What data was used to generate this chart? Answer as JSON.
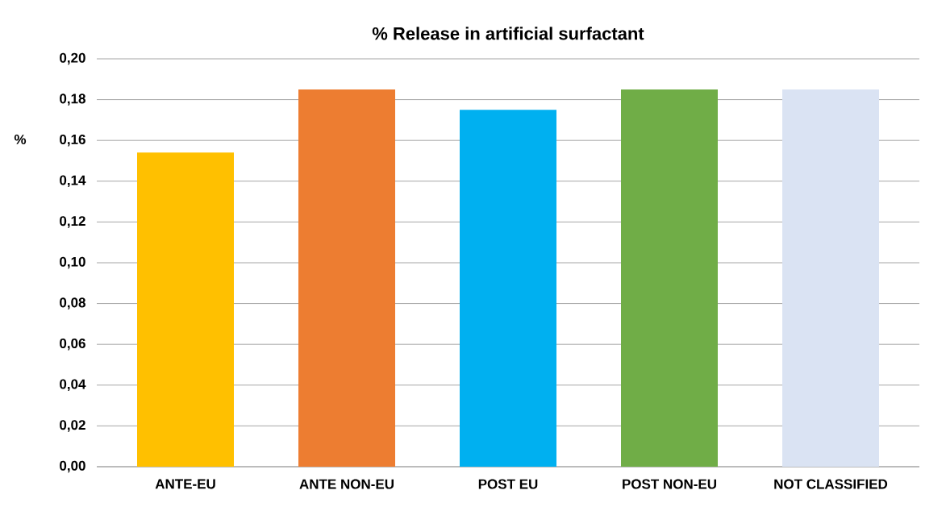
{
  "chart_data": {
    "type": "bar",
    "title": "% Release in artificial surfactant",
    "ylabel": "%",
    "categories": [
      "ANTE-EU",
      "ANTE NON-EU",
      "POST EU",
      "POST NON-EU",
      "NOT CLASSIFIED"
    ],
    "values": [
      0.154,
      0.185,
      0.175,
      0.185,
      0.185
    ],
    "colors": [
      "#ffc000",
      "#ed7d31",
      "#00b0f0",
      "#70ad47",
      "#dae3f3"
    ],
    "ylim": [
      0,
      0.2
    ],
    "yticks": [
      {
        "value": 0,
        "label": "0,00"
      },
      {
        "value": 0.02,
        "label": "0,02"
      },
      {
        "value": 0.04,
        "label": "0,04"
      },
      {
        "value": 0.06,
        "label": "0,06"
      },
      {
        "value": 0.08,
        "label": "0,08"
      },
      {
        "value": 0.1,
        "label": "0,10"
      },
      {
        "value": 0.12,
        "label": "0,12"
      },
      {
        "value": 0.14,
        "label": "0,14"
      },
      {
        "value": 0.16,
        "label": "0,16"
      },
      {
        "value": 0.18,
        "label": "0,18"
      },
      {
        "value": 0.2,
        "label": "0,20"
      }
    ],
    "grid": "y"
  }
}
